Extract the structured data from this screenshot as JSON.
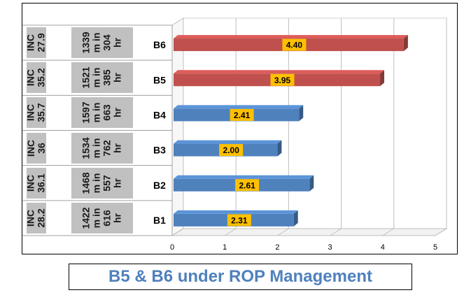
{
  "chart_data": {
    "type": "bar",
    "orientation": "horizontal",
    "categories": [
      "B6",
      "B5",
      "B4",
      "B3",
      "B2",
      "B1"
    ],
    "values": [
      4.4,
      3.95,
      2.41,
      2.0,
      2.61,
      2.31
    ],
    "value_labels": [
      "4.40",
      "3.95",
      "2.41",
      "2.00",
      "2.61",
      "2.31"
    ],
    "bar_colors": [
      "#c0504d",
      "#c0504d",
      "#4f81bd",
      "#4f81bd",
      "#4f81bd",
      "#4f81bd"
    ],
    "label_bg": "#ffc000",
    "xlim": [
      0,
      5
    ],
    "x_ticks": [
      "0",
      "1",
      "2",
      "3",
      "4",
      "5"
    ],
    "grid": true,
    "legend": "none",
    "row_info": [
      {
        "inc": "INC",
        "inc_val": "27.9",
        "m": "1339",
        "m_unit": "m in",
        "hr": "304",
        "hr_unit": "hr"
      },
      {
        "inc": "INC",
        "inc_val": "35.2",
        "m": "1521",
        "m_unit": "m in",
        "hr": "385",
        "hr_unit": "hr"
      },
      {
        "inc": "INC",
        "inc_val": "35.7",
        "m": "1597",
        "m_unit": "m in",
        "hr": "663",
        "hr_unit": "hr"
      },
      {
        "inc": "INC",
        "inc_val": "36",
        "m": "1534",
        "m_unit": "m in",
        "hr": "762",
        "hr_unit": "hr"
      },
      {
        "inc": "INC",
        "inc_val": "36.1",
        "m": "1468",
        "m_unit": "m in",
        "hr": "557",
        "hr_unit": "hr"
      },
      {
        "inc": "INC",
        "inc_val": "28.2",
        "m": "1422",
        "m_unit": "m in",
        "hr": "616",
        "hr_unit": "hr"
      }
    ]
  },
  "caption": "B5 & B6 under ROP Management",
  "colors": {
    "cell_bg": "#c0c0c0",
    "grid": "#bfbfbf",
    "caption": "#4f81bd"
  }
}
